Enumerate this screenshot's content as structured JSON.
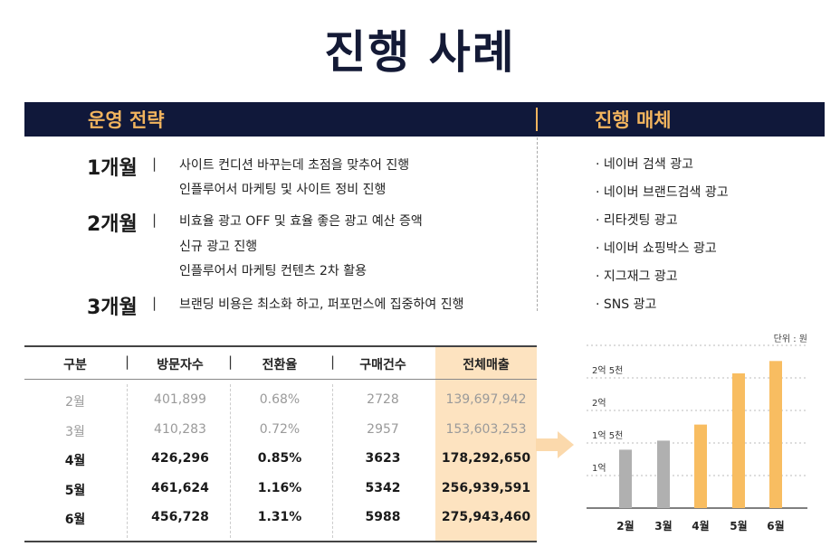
{
  "title": "진행 사례",
  "header": {
    "left": "운영 전략",
    "right": "진행 매체"
  },
  "strategy": [
    {
      "month": "1개월",
      "lines": [
        "사이트 컨디션 바꾸는데 초점을 맞추어 진행",
        "인플루어서 마케팅 및 사이트 정비 진행"
      ]
    },
    {
      "month": "2개월",
      "lines": [
        "비효율 광고 OFF 및 효율 좋은 광고 예산 증액",
        "신규 광고 진행",
        "인플루어서 마케팅 컨텐츠 2차 활용"
      ]
    },
    {
      "month": "3개월",
      "lines": [
        "브랜딩 비용은 최소화 하고, 퍼포먼스에 집중하여 진행"
      ]
    }
  ],
  "separator": "|",
  "media": [
    "· 네이버 검색 광고",
    "· 네이버 브랜드검색 광고",
    "· 리타겟팅 광고",
    "· 네이버 쇼핑박스 광고",
    "· 지그재그 광고",
    "· SNS 광고"
  ],
  "table": {
    "headers": [
      "구분",
      "방문자수",
      "전환율",
      "구매건수",
      "전체매출"
    ],
    "rows": [
      [
        "2월",
        "401,899",
        "0.68%",
        "2728",
        "139,697,942"
      ],
      [
        "3월",
        "410,283",
        "0.72%",
        "2957",
        "153,603,253"
      ],
      [
        "4월",
        "426,296",
        "0.85%",
        "3623",
        "178,292,650"
      ],
      [
        "5월",
        "461,624",
        "1.16%",
        "5342",
        "256,939,591"
      ],
      [
        "6월",
        "456,728",
        "1.31%",
        "5988",
        "275,943,460"
      ]
    ]
  },
  "colors": {
    "navy": "#10183a",
    "accent": "#f2b45e",
    "highlight": "#fde3c0",
    "gray_bar": "#b0b0b0",
    "orange_bar": "#f8bd61"
  },
  "chart_data": {
    "type": "bar",
    "unit_label": "단위 : 원",
    "categories": [
      "2월",
      "3월",
      "4월",
      "5월",
      "6월"
    ],
    "values": [
      139697942,
      153603253,
      178292650,
      256939591,
      275943460
    ],
    "bar_colors": [
      "#b0b0b0",
      "#b0b0b0",
      "#f8bd61",
      "#f8bd61",
      "#f8bd61"
    ],
    "yticks": [
      {
        "value": 100000000,
        "label": "1억"
      },
      {
        "value": 150000000,
        "label": "1억 5천"
      },
      {
        "value": 200000000,
        "label": "2억"
      },
      {
        "value": 250000000,
        "label": "2억 5천"
      }
    ],
    "ylim": [
      50000000,
      300000000
    ],
    "grid": true
  }
}
